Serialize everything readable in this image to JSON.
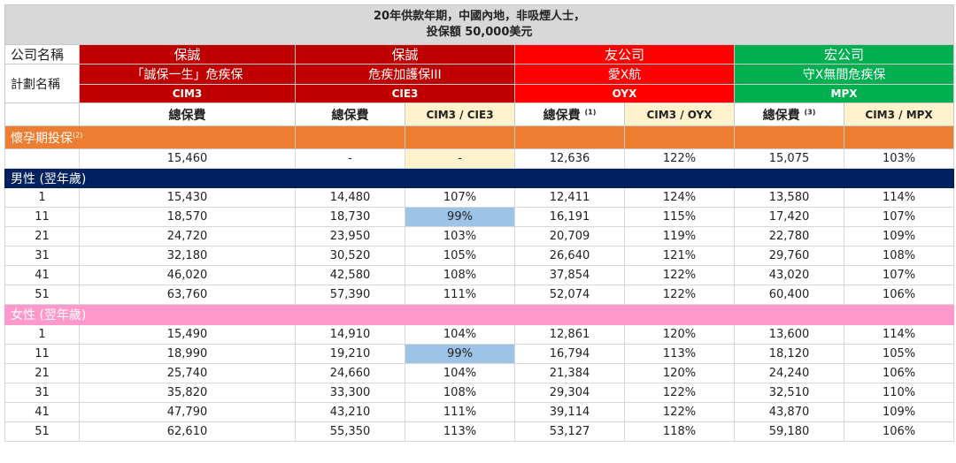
{
  "title": {
    "line1": "20年供款年期，中國內地，非吸煙人士，",
    "line2": "投保額 50,000美元"
  },
  "labels": {
    "company": "公司名稱",
    "plan": "計劃名稱"
  },
  "companies": [
    {
      "name": "保誠",
      "plan": "「誠保一生」危疾保",
      "code": "CIM3",
      "color": "#c00000"
    },
    {
      "name": "保誠",
      "plan": "危疾加護保III",
      "code": "CIE3",
      "color": "#c00000"
    },
    {
      "name": "友公司",
      "plan": "愛X航",
      "code": "OYX",
      "color": "#ff0000"
    },
    {
      "name": "宏公司",
      "plan": "守X無間危疾保",
      "code": "MPX",
      "color": "#00b050"
    }
  ],
  "headers": {
    "premium": "總保費",
    "premium_fn1": "(1)",
    "premium_fn3": "(3)",
    "ratio_cie3": "CIM3 / CIE3",
    "ratio_oyx": "CIM3 / OYX",
    "ratio_mpx": "CIM3 / MPX"
  },
  "pregnancy": {
    "label": "懷孕期投保",
    "footnote": "(2)",
    "row": [
      "",
      "15,460",
      "-",
      "-",
      "12,636",
      "122%",
      "15,075",
      "103%"
    ]
  },
  "male": {
    "label": "男性 (翌年歲)",
    "rows": [
      [
        "1",
        "15,430",
        "14,480",
        "107%",
        "12,411",
        "124%",
        "13,580",
        "114%"
      ],
      [
        "11",
        "18,570",
        "18,730",
        "99%",
        "16,191",
        "115%",
        "17,420",
        "107%"
      ],
      [
        "21",
        "24,720",
        "23,950",
        "103%",
        "20,709",
        "119%",
        "22,780",
        "109%"
      ],
      [
        "31",
        "32,180",
        "30,520",
        "105%",
        "26,640",
        "121%",
        "29,760",
        "108%"
      ],
      [
        "41",
        "46,020",
        "42,580",
        "108%",
        "37,854",
        "122%",
        "43,020",
        "107%"
      ],
      [
        "51",
        "63,760",
        "57,390",
        "111%",
        "52,074",
        "122%",
        "60,400",
        "106%"
      ]
    ]
  },
  "female": {
    "label": "女性 (翌年歲)",
    "rows": [
      [
        "1",
        "15,490",
        "14,910",
        "104%",
        "12,861",
        "120%",
        "13,600",
        "114%"
      ],
      [
        "11",
        "18,990",
        "19,210",
        "99%",
        "16,794",
        "113%",
        "18,120",
        "105%"
      ],
      [
        "21",
        "25,740",
        "24,660",
        "104%",
        "21,384",
        "120%",
        "24,240",
        "106%"
      ],
      [
        "31",
        "35,820",
        "33,300",
        "108%",
        "29,304",
        "122%",
        "32,510",
        "110%"
      ],
      [
        "41",
        "47,790",
        "43,210",
        "111%",
        "39,114",
        "122%",
        "43,870",
        "109%"
      ],
      [
        "51",
        "62,610",
        "55,350",
        "113%",
        "53,127",
        "118%",
        "59,180",
        "106%"
      ]
    ]
  }
}
